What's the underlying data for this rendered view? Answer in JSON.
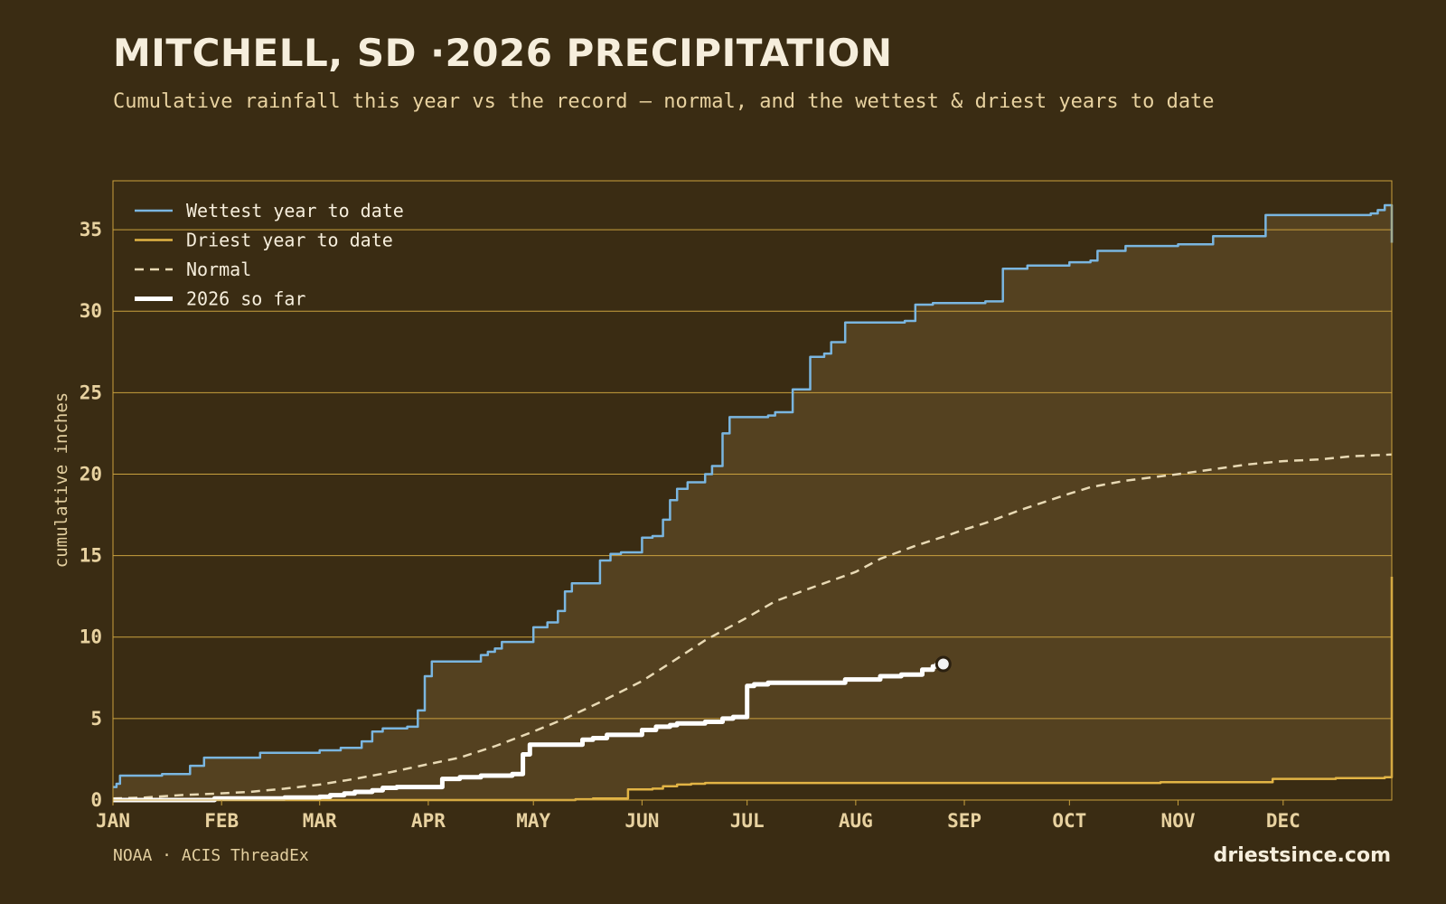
{
  "title": "MITCHELL, SD ·2026 PRECIPITATION",
  "subtitle": "Cumulative rainfall this year vs the record — normal, and the wettest & driest years to date",
  "source": "NOAA · ACIS ThreadEx",
  "brand": "driestsince.com",
  "colors": {
    "background": "#3a2c13",
    "band_fill": "#544120",
    "grid": "#c9a13e",
    "wettest": "#7ab6e0",
    "driest": "#e2b445",
    "normal": "#e8d9b4",
    "current": "#ffffff"
  },
  "chart_data": {
    "type": "line",
    "xlabel": "",
    "ylabel": "cumulative inches",
    "xlim": [
      1,
      366
    ],
    "ylim": [
      0,
      38
    ],
    "x_ticks": [
      {
        "day": 1,
        "label": "JAN"
      },
      {
        "day": 32,
        "label": "FEB"
      },
      {
        "day": 60,
        "label": "MAR"
      },
      {
        "day": 91,
        "label": "APR"
      },
      {
        "day": 121,
        "label": "MAY"
      },
      {
        "day": 152,
        "label": "JUN"
      },
      {
        "day": 182,
        "label": "JUL"
      },
      {
        "day": 213,
        "label": "AUG"
      },
      {
        "day": 244,
        "label": "SEP"
      },
      {
        "day": 274,
        "label": "OCT"
      },
      {
        "day": 305,
        "label": "NOV"
      },
      {
        "day": 335,
        "label": "DEC"
      }
    ],
    "y_ticks": [
      0,
      5,
      10,
      15,
      20,
      25,
      30,
      35
    ],
    "grid": true,
    "legend_position": "top-left",
    "series": [
      {
        "name": "Wettest year to date",
        "style": "solid",
        "x": [
          1,
          2,
          3,
          8,
          12,
          15,
          20,
          23,
          25,
          27,
          30,
          35,
          40,
          43,
          45,
          50,
          55,
          60,
          62,
          66,
          70,
          72,
          75,
          78,
          80,
          85,
          88,
          90,
          92,
          95,
          98,
          100,
          102,
          104,
          106,
          108,
          110,
          112,
          115,
          120,
          121,
          125,
          128,
          130,
          132,
          135,
          140,
          143,
          146,
          149,
          152,
          155,
          158,
          160,
          162,
          165,
          168,
          170,
          172,
          175,
          177,
          180,
          185,
          188,
          190,
          195,
          198,
          200,
          204,
          206,
          210,
          215,
          220,
          225,
          227,
          230,
          235,
          240,
          244,
          250,
          255,
          260,
          262,
          268,
          274,
          280,
          282,
          285,
          290,
          295,
          300,
          305,
          310,
          315,
          320,
          330,
          335,
          340,
          350,
          360,
          362,
          364,
          366
        ],
        "y": [
          0.8,
          1.0,
          1.5,
          1.5,
          1.5,
          1.6,
          1.6,
          2.1,
          2.1,
          2.6,
          2.6,
          2.6,
          2.6,
          2.9,
          2.9,
          2.9,
          2.9,
          3.05,
          3.05,
          3.2,
          3.2,
          3.6,
          4.2,
          4.4,
          4.4,
          4.5,
          5.5,
          7.6,
          8.5,
          8.5,
          8.5,
          8.5,
          8.5,
          8.5,
          8.9,
          9.1,
          9.3,
          9.7,
          9.7,
          9.7,
          10.6,
          10.9,
          11.6,
          12.8,
          13.3,
          13.3,
          14.7,
          15.1,
          15.2,
          15.2,
          16.1,
          16.2,
          17.2,
          18.4,
          19.1,
          19.5,
          19.5,
          20.0,
          20.5,
          22.5,
          23.5,
          23.5,
          23.5,
          23.6,
          23.8,
          25.2,
          25.2,
          27.2,
          27.4,
          28.1,
          29.3,
          29.3,
          29.3,
          29.3,
          29.4,
          30.4,
          30.5,
          30.5,
          30.5,
          30.6,
          32.6,
          32.6,
          32.8,
          32.8,
          33.0,
          33.1,
          33.7,
          33.7,
          34.0,
          34.0,
          34.0,
          34.1,
          34.1,
          34.6,
          34.6,
          35.9,
          35.9,
          35.9,
          35.9,
          36.0,
          36.2,
          36.5,
          34.2
        ]
      },
      {
        "name": "Driest year to date",
        "style": "solid",
        "x": [
          1,
          120,
          130,
          133,
          138,
          148,
          150,
          155,
          158,
          162,
          166,
          170,
          180,
          190,
          200,
          230,
          250,
          260,
          290,
          300,
          320,
          330,
          332,
          340,
          350,
          360,
          364,
          365,
          366
        ],
        "y": [
          0,
          0,
          0,
          0.05,
          0.1,
          0.65,
          0.65,
          0.7,
          0.85,
          0.95,
          1.0,
          1.05,
          1.05,
          1.05,
          1.05,
          1.05,
          1.05,
          1.05,
          1.05,
          1.1,
          1.1,
          1.1,
          1.3,
          1.3,
          1.35,
          1.35,
          1.4,
          1.4,
          13.7
        ]
      },
      {
        "name": "Normal",
        "style": "dashed",
        "x": [
          1,
          10,
          20,
          31,
          40,
          50,
          60,
          70,
          80,
          91,
          100,
          110,
          121,
          130,
          140,
          152,
          160,
          170,
          182,
          190,
          200,
          213,
          220,
          230,
          240,
          244,
          250,
          260,
          274,
          280,
          290,
          305,
          315,
          325,
          335,
          345,
          355,
          366
        ],
        "y": [
          0.1,
          0.15,
          0.3,
          0.4,
          0.5,
          0.7,
          0.95,
          1.3,
          1.7,
          2.2,
          2.6,
          3.3,
          4.2,
          5.0,
          6.0,
          7.3,
          8.4,
          9.8,
          11.2,
          12.2,
          13.0,
          14.0,
          14.8,
          15.6,
          16.3,
          16.6,
          17.0,
          17.8,
          18.8,
          19.2,
          19.6,
          20.0,
          20.3,
          20.6,
          20.8,
          20.9,
          21.1,
          21.2
        ]
      },
      {
        "name": "2026 so far",
        "style": "bold",
        "x": [
          1,
          30,
          50,
          60,
          63,
          67,
          70,
          75,
          78,
          82,
          90,
          95,
          100,
          106,
          110,
          114,
          115,
          118,
          120,
          122,
          130,
          135,
          138,
          142,
          145,
          152,
          156,
          160,
          162,
          170,
          175,
          178,
          182,
          184,
          188,
          193,
          200,
          205,
          210,
          215,
          220,
          226,
          229,
          232,
          235,
          236,
          238
        ],
        "y": [
          0,
          0.1,
          0.15,
          0.2,
          0.3,
          0.4,
          0.5,
          0.6,
          0.75,
          0.8,
          0.8,
          1.3,
          1.4,
          1.5,
          1.5,
          1.5,
          1.6,
          2.8,
          3.4,
          3.4,
          3.4,
          3.7,
          3.8,
          4.0,
          4.0,
          4.3,
          4.5,
          4.6,
          4.7,
          4.8,
          5.0,
          5.1,
          7.0,
          7.1,
          7.2,
          7.2,
          7.2,
          7.2,
          7.4,
          7.4,
          7.6,
          7.7,
          7.7,
          8.0,
          8.2,
          8.3,
          8.35
        ]
      }
    ]
  }
}
